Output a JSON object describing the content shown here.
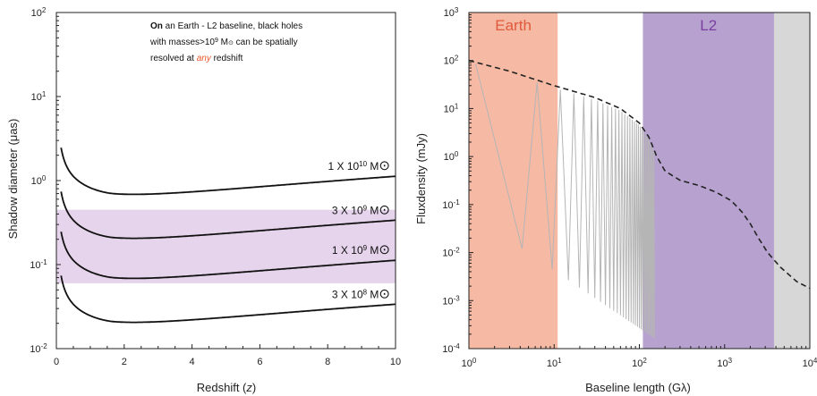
{
  "chart_data": [
    {
      "type": "line",
      "xlabel_main": "Redshift (",
      "xlabel_var": "z",
      "xlabel_tail": ")",
      "ylabel": "Shadow diameter (μas)",
      "xlim": [
        0,
        10
      ],
      "ylim": [
        0.01,
        100
      ],
      "yscale": "log",
      "xticks": [
        "0",
        "2",
        "4",
        "6",
        "8",
        "10"
      ],
      "yticks_base": "10",
      "yticks_exp": [
        "-2",
        "-1",
        "0",
        "1",
        "2"
      ],
      "annotation": {
        "lead": "On",
        "line1_rest": " an Earth - L2 baseline, black holes",
        "line2_pre": "with masses>10",
        "line2_exp": "9",
        "line2_post": " M",
        "line2_tail": " can be spatially",
        "line3_pre": "resolved at ",
        "line3_em": "any",
        "line3_post": " redshift",
        "em_color": "#e8562a"
      },
      "band_range": [
        0.06,
        0.45
      ],
      "band_color": "#e6d4ec",
      "series": [
        {
          "name": "1 X 10^10 M⊙",
          "coef": "1 X 10",
          "exp": "10",
          "unit": " M",
          "min_value": 0.55,
          "end_value": 1.1
        },
        {
          "name": "3 X 10^9 M⊙",
          "coef": "3 X 10",
          "exp": "9",
          "unit": " M",
          "min_value": 0.165,
          "end_value": 0.33
        },
        {
          "name": "1 X 10^9 M⊙",
          "coef": "1 X 10",
          "exp": "9",
          "unit": " M",
          "min_value": 0.055,
          "end_value": 0.11
        },
        {
          "name": "3 X 10^8 M⊙",
          "coef": "3 X 10",
          "exp": "8",
          "unit": " M",
          "min_value": 0.0165,
          "end_value": 0.033
        }
      ],
      "sun_symbol": "⊙"
    },
    {
      "type": "line",
      "xlabel": "Baseline length (Gλ)",
      "ylabel": "Fluxdensity (mJy)",
      "xscale": "log",
      "yscale": "log",
      "xlim": [
        1,
        10000
      ],
      "ylim": [
        0.0001,
        1000
      ],
      "ticks_base": "10",
      "xticks_exp": [
        "0",
        "1",
        "2",
        "3",
        "4"
      ],
      "yticks_exp": [
        "-4",
        "-3",
        "-2",
        "-1",
        "0",
        "1",
        "2",
        "3"
      ],
      "bands": [
        {
          "label": "Earth",
          "range": [
            1,
            11
          ],
          "color": "#f6b9a4",
          "text_color": "#e05a3c"
        },
        {
          "label": "L2",
          "range": [
            110,
            3800
          ],
          "color": "#b7a2cf",
          "text_color": "#7a3fa0"
        }
      ],
      "tail_shade": {
        "range": [
          3800,
          10000
        ],
        "color": "#d7d7d7"
      },
      "envelope": {
        "style": "dashed",
        "points": [
          [
            1,
            100
          ],
          [
            3,
            60
          ],
          [
            10,
            30
          ],
          [
            30,
            17
          ],
          [
            60,
            10
          ],
          [
            100,
            5
          ],
          [
            130,
            2.5
          ],
          [
            160,
            1.0
          ],
          [
            200,
            0.5
          ],
          [
            300,
            0.32
          ],
          [
            500,
            0.25
          ],
          [
            800,
            0.18
          ],
          [
            1200,
            0.12
          ],
          [
            1600,
            0.07
          ],
          [
            2000,
            0.04
          ],
          [
            2500,
            0.02
          ],
          [
            3200,
            0.01
          ],
          [
            4500,
            0.005
          ],
          [
            7000,
            0.0025
          ],
          [
            10000,
            0.0018
          ]
        ]
      },
      "visibility_nulls": [
        4.2,
        9.5,
        14.7,
        19.8,
        25,
        30,
        35,
        40,
        45,
        50,
        55,
        60,
        65,
        70,
        75,
        80,
        85,
        90,
        95,
        100,
        105,
        110,
        115,
        120,
        125,
        130,
        135,
        140,
        145,
        150
      ]
    }
  ]
}
